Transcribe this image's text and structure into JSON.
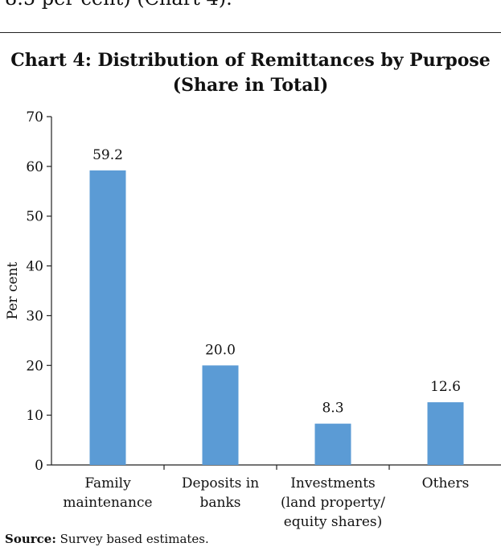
{
  "context": {
    "preceding_text": "8.5 per cent) (Chart 4)."
  },
  "chart_data": {
    "type": "bar",
    "title_line1": "Chart 4: Distribution of Remittances by Purpose",
    "title_line2": "(Share in Total)",
    "ylabel": "Per cent",
    "xlabel": "",
    "ylim": [
      0,
      70
    ],
    "yticks": [
      0,
      10,
      20,
      30,
      40,
      50,
      60,
      70
    ],
    "categories": [
      [
        "Family",
        "maintenance"
      ],
      [
        "Deposits in",
        "banks"
      ],
      [
        "Investments",
        "(land property/",
        "equity shares)"
      ],
      [
        "Others"
      ]
    ],
    "values": [
      59.2,
      20.0,
      8.3,
      12.6
    ],
    "value_labels": [
      "59.2",
      "20.0",
      "8.3",
      "12.6"
    ],
    "bar_color": "#5b9bd5",
    "grid": false,
    "legend": "none"
  },
  "source": {
    "label": "Source:",
    "text": " Survey based estimates."
  }
}
